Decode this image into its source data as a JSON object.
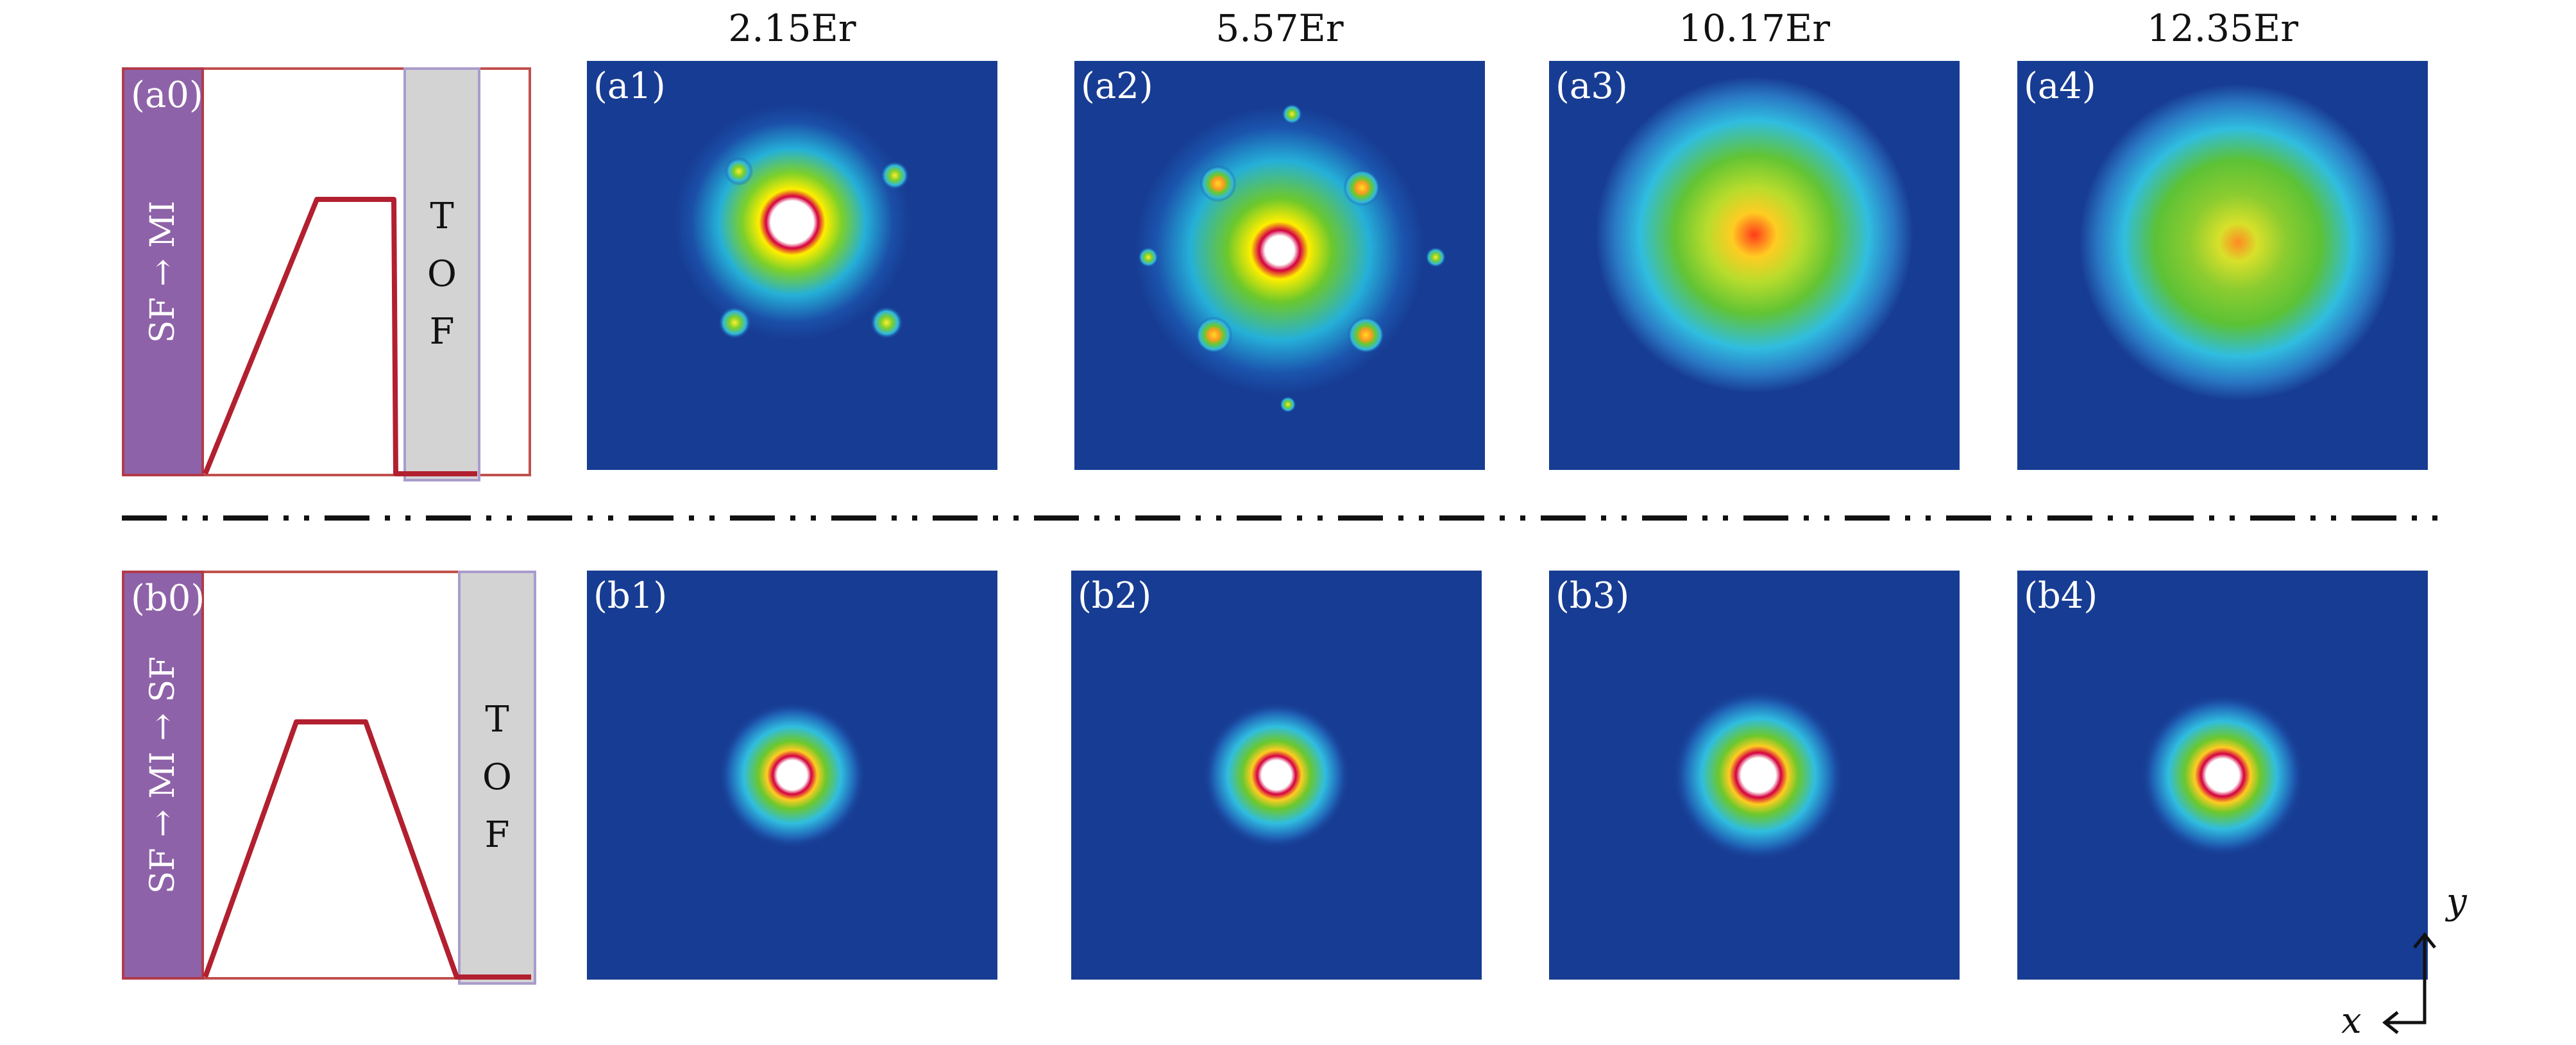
{
  "column_headers": [
    "2.15Er",
    "5.57Er",
    "10.17Er",
    "12.35Er"
  ],
  "rows": [
    {
      "sequence": {
        "label": "(a0)",
        "bar_text": "SF → MI",
        "tof_letters": [
          "T",
          "O",
          "F"
        ]
      },
      "images": [
        {
          "label": "(a1)",
          "pattern": "lattice-peaks-weak"
        },
        {
          "label": "(a2)",
          "pattern": "lattice-peaks-strong"
        },
        {
          "label": "(a3)",
          "pattern": "broad-cloud"
        },
        {
          "label": "(a4)",
          "pattern": "broad-cloud"
        }
      ]
    },
    {
      "sequence": {
        "label": "(b0)",
        "bar_text": "SF → MI → SF",
        "tof_letters": [
          "T",
          "O",
          "F"
        ]
      },
      "images": [
        {
          "label": "(b1)",
          "pattern": "central-peak"
        },
        {
          "label": "(b2)",
          "pattern": "central-peak"
        },
        {
          "label": "(b3)",
          "pattern": "central-peak"
        },
        {
          "label": "(b4)",
          "pattern": "central-peak"
        }
      ]
    }
  ],
  "axes": {
    "x": "x",
    "y": "y"
  },
  "colors": {
    "background_blue": "#173c93",
    "ramp_line": "#b22030",
    "sequence_bar": "#8e62a8",
    "tof_box": "#d3d3d3"
  }
}
